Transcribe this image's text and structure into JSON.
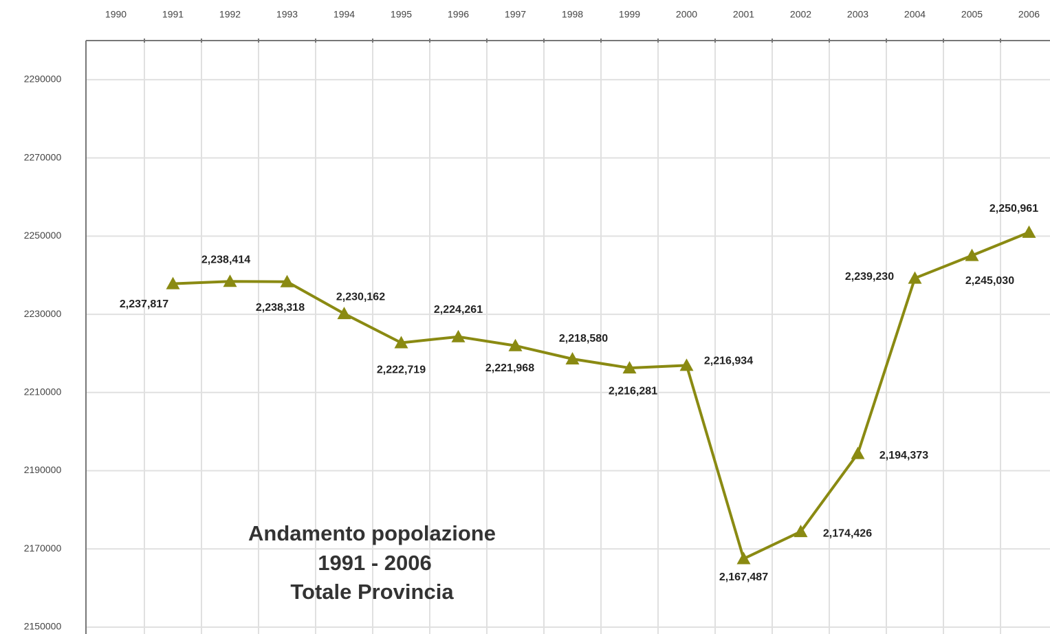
{
  "chart_data": {
    "type": "line",
    "title": [
      "Andamento popolazione",
      "1991 - 2006",
      "Totale Provincia"
    ],
    "categories": [
      "1990",
      "1991",
      "1992",
      "1993",
      "1994",
      "1995",
      "1996",
      "1997",
      "1998",
      "1999",
      "2000",
      "2001",
      "2002",
      "2003",
      "2004",
      "2005",
      "2006"
    ],
    "series": [
      {
        "color": "#8a8a12",
        "values": [
          null,
          2237817,
          2238414,
          2238318,
          2230162,
          2222719,
          2224261,
          2221968,
          2218580,
          2216281,
          2216934,
          2167487,
          2174426,
          2194373,
          2239230,
          2245030,
          2250961
        ],
        "value_labels": [
          null,
          "2,237,817",
          "2,238,414",
          "2,238,318",
          "2,230,162",
          "2,222,719",
          "2,224,261",
          "2,221,968",
          "2,218,580",
          "2,216,281",
          "2,216,934",
          "2,167,487",
          "2,174,426",
          "2,194,373",
          "2,239,230",
          "2,245,030",
          "2,250,961"
        ]
      }
    ],
    "ylim": [
      2150000,
      2300000
    ],
    "yticks": [
      2150000,
      2170000,
      2190000,
      2210000,
      2230000,
      2250000,
      2270000,
      2290000
    ],
    "grid": true
  }
}
